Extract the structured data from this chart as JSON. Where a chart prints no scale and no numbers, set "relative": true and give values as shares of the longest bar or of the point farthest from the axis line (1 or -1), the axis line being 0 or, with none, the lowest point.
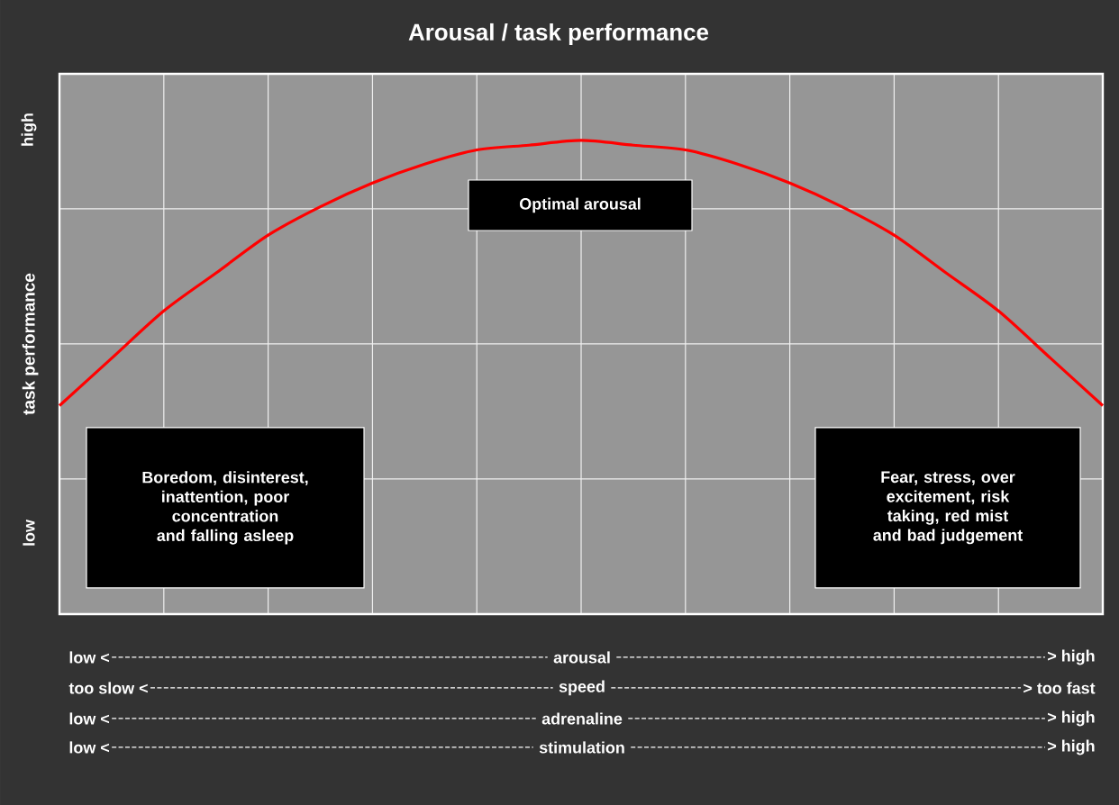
{
  "chart_data": {
    "type": "line",
    "title": "Arousal / task performance",
    "ylabel": "task performance",
    "relative": true,
    "categories": [
      null,
      null,
      null,
      null,
      null,
      null,
      null,
      null,
      null,
      null,
      null,
      null,
      null,
      null,
      null,
      null,
      null,
      null,
      null,
      null,
      null
    ],
    "series": [
      {
        "color": "#ff0000",
        "values": [
          0.44,
          0.54,
          0.64,
          0.72,
          0.8,
          0.86,
          0.91,
          0.95,
          0.98,
          0.99,
          1.0,
          0.99,
          0.98,
          0.95,
          0.91,
          0.86,
          0.8,
          0.72,
          0.64,
          0.54,
          0.44
        ]
      }
    ],
    "grid": true,
    "legend": false,
    "marker": "none",
    "line_style": "solid",
    "annotations": [
      "high",
      "low",
      "Optimal arousal",
      "Boredom, disinterest, inattention, poor concentration and falling asleep",
      "Fear, stress, over excitement, risk taking, red mist and bad judgement",
      "low <",
      "arousal",
      "> high",
      "too slow <",
      "speed",
      "> too fast",
      "low <",
      "adrenaline",
      "> high",
      "low <",
      "stimulation",
      "> high"
    ]
  }
}
